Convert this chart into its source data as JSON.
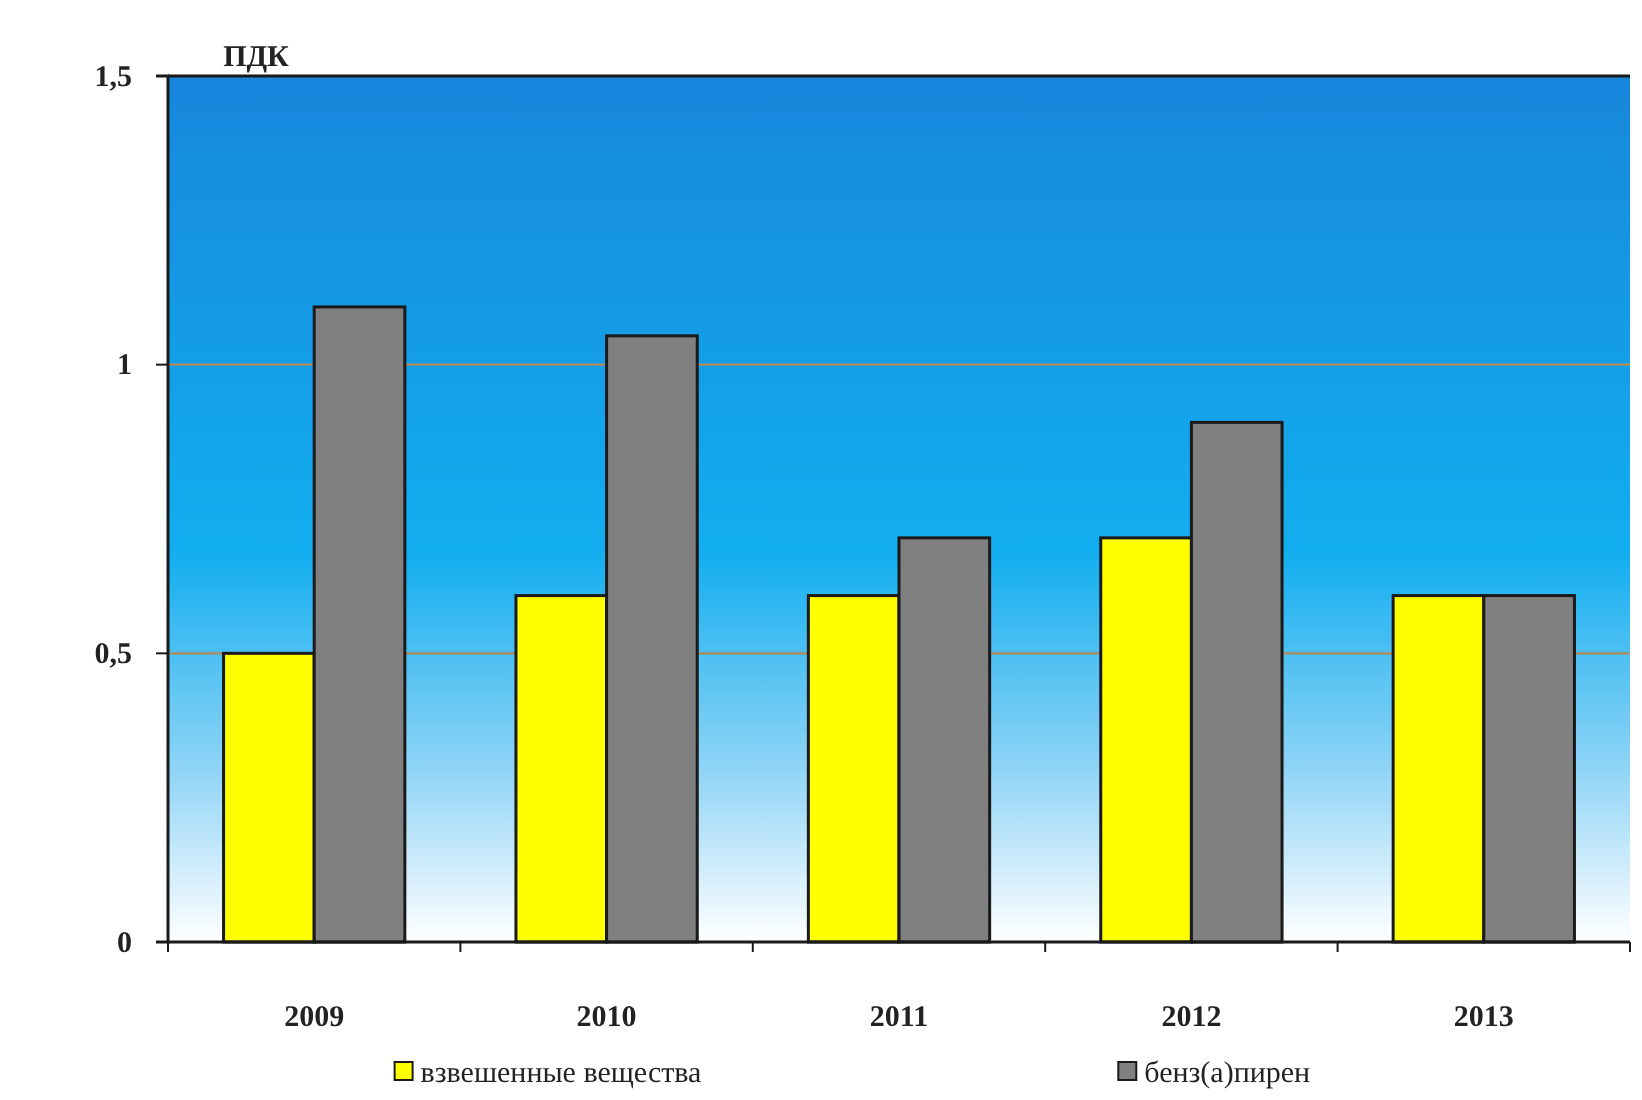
{
  "chart_data": {
    "type": "bar",
    "ylabel": "ПДК",
    "categories": [
      "2009",
      "2010",
      "2011",
      "2012",
      "2013"
    ],
    "series": [
      {
        "name": "взвешенные вещества",
        "color": "#ffff00",
        "values": [
          0.5,
          0.6,
          0.6,
          0.7,
          0.6
        ]
      },
      {
        "name": "бенз(а)пирен",
        "color": "#808080",
        "values": [
          1.1,
          1.05,
          0.7,
          0.9,
          0.6
        ]
      }
    ],
    "ylim": [
      0,
      1.5
    ],
    "yticks": [
      0,
      {
        "value": 0.5,
        "label": "0,5"
      },
      1,
      {
        "value": 1.5,
        "label": "1,5"
      }
    ],
    "grid": "y",
    "legend": "bottom"
  }
}
